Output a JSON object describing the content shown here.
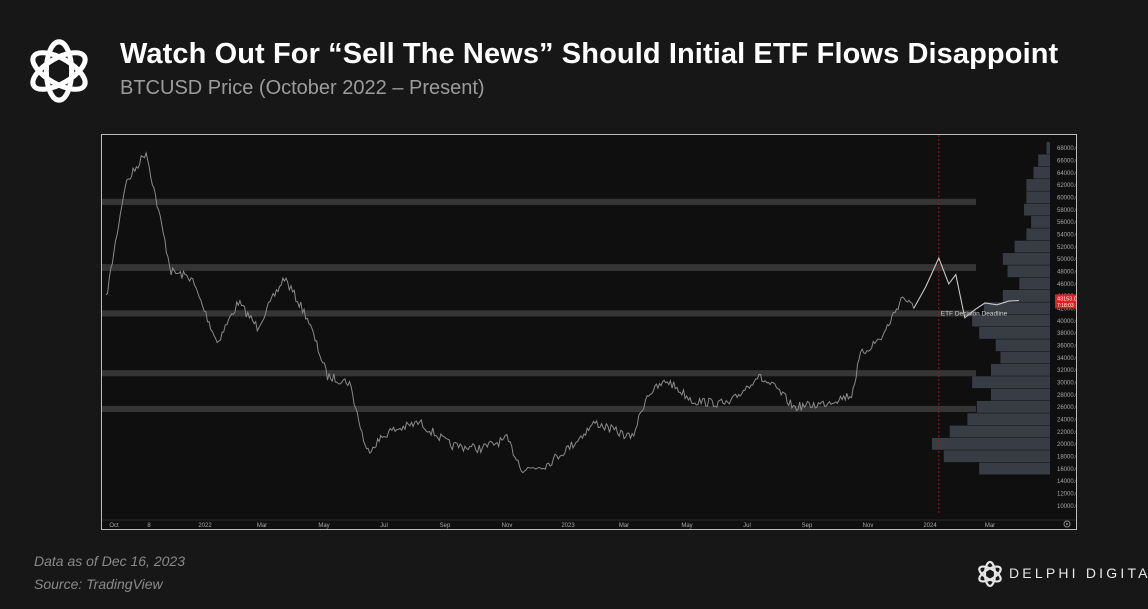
{
  "header": {
    "title": "Watch Out For “Sell The News” Should Initial ETF Flows Disappoint",
    "subtitle": "BTCUSD Price (October 2022 – Present)"
  },
  "footer": {
    "data_as_of": "Data as of Dec 16, 2023",
    "source": "Source: TradingView",
    "brand": "DELPHI DIGITAL"
  },
  "icons": {
    "header_logo": "delphi-knot-logo-icon",
    "footer_logo": "delphi-knot-logo-icon",
    "settings": "gear-icon"
  },
  "colors": {
    "background": "#171717",
    "plot_background": "#0f0f0f",
    "price_line": "#8a8a8a",
    "forecast_line": "#c8c8c8",
    "zone_band": "#3a3a3a",
    "volume_profile": "#3b3f48",
    "current_price_badge": "#e02020",
    "deadline_line": "#8b2222"
  },
  "chart_data": {
    "type": "line",
    "title": "",
    "xlabel": "",
    "ylabel": "",
    "x_tick_labels": [
      "Oct",
      "8",
      "2022",
      "Mar",
      "May",
      "Jul",
      "Sep",
      "Nov",
      "2023",
      "Mar",
      "May",
      "Jul",
      "Sep",
      "Nov",
      "2024",
      "Mar"
    ],
    "y_tick_labels": [
      "10000.0",
      "12000.0",
      "14000.0",
      "16000.0",
      "18000.0",
      "20000.0",
      "22000.0",
      "24000.0",
      "26000.0",
      "28000.0",
      "30000.0",
      "32000.0",
      "34000.0",
      "36000.0",
      "38000.0",
      "40000.0",
      "42000.0",
      "44000.0",
      "46000.0",
      "48000.0",
      "50000.0",
      "52000.0",
      "54000.0",
      "56000.0",
      "58000.0",
      "60000.0",
      "62000.0",
      "64000.0",
      "66000.0",
      "68000.0"
    ],
    "ylim": [
      8500,
      69500
    ],
    "grid": false,
    "series": [
      {
        "type": "price",
        "x": [
          "2021-10-01",
          "2021-10-20",
          "2021-11-10",
          "2021-12-05",
          "2021-12-25",
          "2022-01-20",
          "2022-02-10",
          "2022-03-01",
          "2022-03-28",
          "2022-04-20",
          "2022-05-10",
          "2022-06-01",
          "2022-06-18",
          "2022-07-10",
          "2022-08-10",
          "2022-09-10",
          "2022-10-10",
          "2022-11-05",
          "2022-11-21",
          "2022-12-15",
          "2023-01-10",
          "2023-02-01",
          "2023-03-10",
          "2023-03-25",
          "2023-04-14",
          "2023-05-10",
          "2023-06-15",
          "2023-07-13",
          "2023-08-01",
          "2023-08-18",
          "2023-09-15",
          "2023-10-15",
          "2023-10-24",
          "2023-11-15",
          "2023-12-05",
          "2023-12-16"
        ],
        "y": [
          43500,
          62000,
          67500,
          48000,
          47000,
          36500,
          43000,
          39000,
          47000,
          40500,
          31000,
          30000,
          18800,
          22000,
          23500,
          19800,
          19300,
          20800,
          15800,
          16700,
          20000,
          23500,
          21000,
          28000,
          30300,
          27000,
          26500,
          31000,
          29000,
          26000,
          26500,
          28000,
          34500,
          37500,
          44000,
          42000
        ]
      },
      {
        "type": "forecast",
        "x": [
          "2023-12-16",
          "2023-12-28",
          "2024-01-10",
          "2024-01-20",
          "2024-01-27",
          "2024-02-05",
          "2024-02-15",
          "2024-02-25",
          "2024-03-08",
          "2024-03-20",
          "2024-03-30"
        ],
        "y": [
          42000,
          45500,
          50200,
          46000,
          47500,
          40500,
          41800,
          42900,
          42600,
          43200,
          43300
        ]
      }
    ],
    "zones": [
      {
        "from": 25200,
        "to": 26200
      },
      {
        "from": 31000,
        "to": 32000
      },
      {
        "from": 40700,
        "to": 41700
      },
      {
        "from": 48100,
        "to": 49200
      },
      {
        "from": 58800,
        "to": 59800
      }
    ],
    "volume_profile": {
      "price_levels": [
        16000,
        18000,
        20000,
        22000,
        24000,
        26000,
        28000,
        30000,
        32000,
        34000,
        36000,
        38000,
        40000,
        42000,
        44000,
        46000,
        48000,
        50000,
        52000,
        54000,
        56000,
        58000,
        60000,
        62000,
        64000,
        66000,
        68000
      ],
      "relative_volume": [
        0.6,
        0.9,
        1.0,
        0.85,
        0.7,
        0.62,
        0.5,
        0.66,
        0.5,
        0.42,
        0.46,
        0.6,
        0.66,
        0.56,
        0.4,
        0.26,
        0.36,
        0.4,
        0.3,
        0.2,
        0.16,
        0.22,
        0.2,
        0.2,
        0.14,
        0.1,
        0.03
      ]
    },
    "current_price_badge": {
      "price": "43153.0",
      "countdown": "7:18:03"
    },
    "annotation": {
      "text": "ETF Decision Deadline",
      "date": "2024-01-10"
    }
  }
}
